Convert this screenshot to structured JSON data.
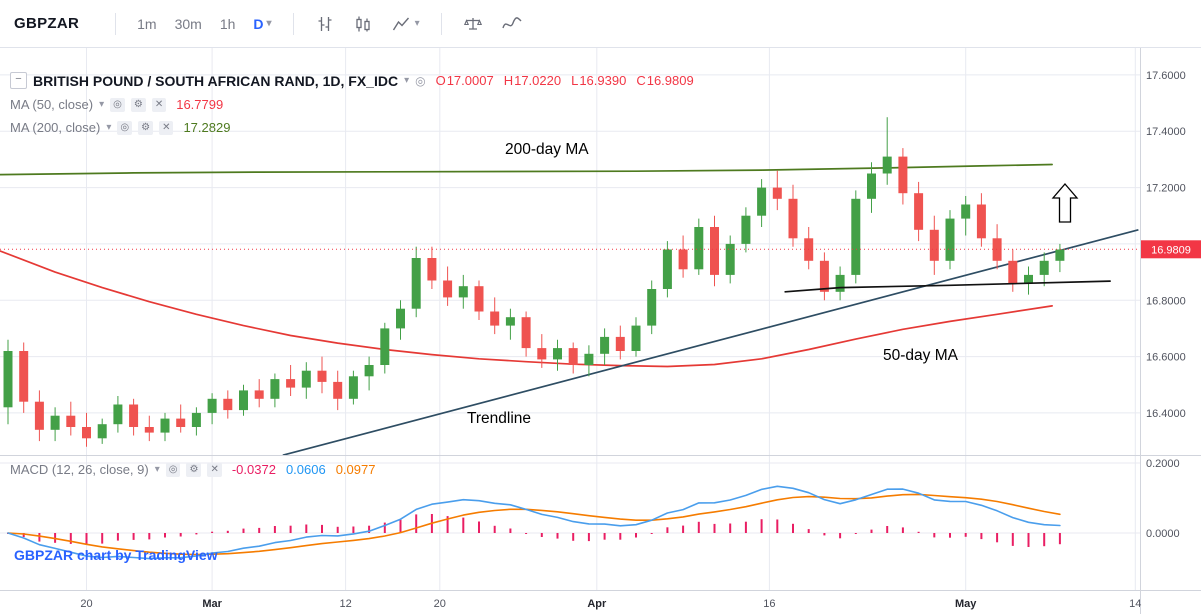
{
  "toolbar": {
    "symbol": "GBPZAR",
    "intervals": [
      {
        "label": "1m",
        "active": false
      },
      {
        "label": "30m",
        "active": false
      },
      {
        "label": "1h",
        "active": false
      },
      {
        "label": "D",
        "active": true
      }
    ]
  },
  "icons": {
    "chevron_down": "▾",
    "eye": "◎",
    "gear": "⚙",
    "close": "✕",
    "minus": "−"
  },
  "legend": {
    "title": "BRITISH POUND / SOUTH AFRICAN RAND, 1D, FX_IDC",
    "ohlc": {
      "o_label": "O",
      "o": "17.0007",
      "h_label": "H",
      "h": "17.0220",
      "l_label": "L",
      "l": "16.9390",
      "c_label": "C",
      "c": "16.9809"
    },
    "ma50": {
      "label": "MA (50, close)",
      "value": "16.7799"
    },
    "ma200": {
      "label": "MA (200, close)",
      "value": "17.2829"
    }
  },
  "macd_legend": {
    "label": "MACD (12, 26, close, 9)",
    "hist": "-0.0372",
    "macd": "0.0606",
    "signal": "0.0977"
  },
  "annotations": {
    "ma200": "200-day MA",
    "ma50": "50-day MA",
    "trendline": "Trendline"
  },
  "watermark": "GBPZAR chart by TradingView",
  "colors": {
    "accent_blue": "#2962ff",
    "up": "#43a047",
    "down": "#ef5350",
    "ma50": "#e53935",
    "ma200": "#4e7a1f",
    "price_line": "#f23645",
    "macd_hist": "#e91e63",
    "macd_line": "#4a9eec",
    "macd_signal": "#f57c00",
    "trendline": "#2e4d63",
    "support": "#111111",
    "grid": "#e8eaf1",
    "border": "#d1d4dc",
    "axis_text": "#50535e"
  },
  "chart_data": {
    "type": "candlestick",
    "symbol": "GBPZAR",
    "interval": "1D",
    "current_price": 16.9809,
    "price_axis": {
      "min": 16.24,
      "max": 17.66,
      "grid": [
        16.4,
        16.6,
        16.8,
        17.0,
        17.2,
        17.4,
        17.6
      ],
      "labels": [
        16.4,
        16.6,
        16.8,
        17.2,
        17.4,
        17.6
      ]
    },
    "macd_axis": {
      "labels": [
        0.2,
        0.0
      ]
    },
    "time_ticks": [
      {
        "label": "20",
        "i": 5
      },
      {
        "label": "Mar",
        "i": 13,
        "major": true
      },
      {
        "label": "12",
        "i": 21.5
      },
      {
        "label": "20",
        "i": 27.5
      },
      {
        "label": "Apr",
        "i": 37.5,
        "major": true
      },
      {
        "label": "16",
        "i": 48.5
      },
      {
        "label": "May",
        "i": 61,
        "major": true
      },
      {
        "label": "14",
        "i": 71.8
      }
    ],
    "candles": [
      [
        16.42,
        16.66,
        16.36,
        16.62
      ],
      [
        16.62,
        16.65,
        16.4,
        16.44
      ],
      [
        16.44,
        16.48,
        16.3,
        16.34
      ],
      [
        16.34,
        16.42,
        16.3,
        16.39
      ],
      [
        16.39,
        16.44,
        16.32,
        16.35
      ],
      [
        16.35,
        16.4,
        16.28,
        16.31
      ],
      [
        16.31,
        16.38,
        16.29,
        16.36
      ],
      [
        16.36,
        16.46,
        16.33,
        16.43
      ],
      [
        16.43,
        16.45,
        16.32,
        16.35
      ],
      [
        16.35,
        16.39,
        16.3,
        16.33
      ],
      [
        16.33,
        16.4,
        16.3,
        16.38
      ],
      [
        16.38,
        16.43,
        16.33,
        16.35
      ],
      [
        16.35,
        16.42,
        16.32,
        16.4
      ],
      [
        16.4,
        16.47,
        16.36,
        16.45
      ],
      [
        16.45,
        16.48,
        16.38,
        16.41
      ],
      [
        16.41,
        16.5,
        16.39,
        16.48
      ],
      [
        16.48,
        16.52,
        16.42,
        16.45
      ],
      [
        16.45,
        16.54,
        16.42,
        16.52
      ],
      [
        16.52,
        16.57,
        16.46,
        16.49
      ],
      [
        16.49,
        16.58,
        16.45,
        16.55
      ],
      [
        16.55,
        16.6,
        16.47,
        16.51
      ],
      [
        16.51,
        16.55,
        16.41,
        16.45
      ],
      [
        16.45,
        16.55,
        16.43,
        16.53
      ],
      [
        16.53,
        16.6,
        16.48,
        16.57
      ],
      [
        16.57,
        16.72,
        16.54,
        16.7
      ],
      [
        16.7,
        16.8,
        16.66,
        16.77
      ],
      [
        16.77,
        16.99,
        16.74,
        16.95
      ],
      [
        16.95,
        16.99,
        16.84,
        16.87
      ],
      [
        16.87,
        16.92,
        16.78,
        16.81
      ],
      [
        16.81,
        16.89,
        16.77,
        16.85
      ],
      [
        16.85,
        16.87,
        16.73,
        16.76
      ],
      [
        16.76,
        16.81,
        16.68,
        16.71
      ],
      [
        16.71,
        16.77,
        16.66,
        16.74
      ],
      [
        16.74,
        16.76,
        16.6,
        16.63
      ],
      [
        16.63,
        16.68,
        16.56,
        16.59
      ],
      [
        16.59,
        16.66,
        16.55,
        16.63
      ],
      [
        16.63,
        16.65,
        16.54,
        16.57
      ],
      [
        16.57,
        16.64,
        16.53,
        16.61
      ],
      [
        16.61,
        16.7,
        16.57,
        16.67
      ],
      [
        16.67,
        16.71,
        16.59,
        16.62
      ],
      [
        16.62,
        16.74,
        16.6,
        16.71
      ],
      [
        16.71,
        16.87,
        16.68,
        16.84
      ],
      [
        16.84,
        17.01,
        16.81,
        16.98
      ],
      [
        16.98,
        17.03,
        16.88,
        16.91
      ],
      [
        16.91,
        17.09,
        16.89,
        17.06
      ],
      [
        17.06,
        17.1,
        16.85,
        16.89
      ],
      [
        16.89,
        17.03,
        16.86,
        17.0
      ],
      [
        17.0,
        17.13,
        16.97,
        17.1
      ],
      [
        17.1,
        17.23,
        17.06,
        17.2
      ],
      [
        17.2,
        17.26,
        17.12,
        17.16
      ],
      [
        17.16,
        17.21,
        16.99,
        17.02
      ],
      [
        17.02,
        17.06,
        16.91,
        16.94
      ],
      [
        16.94,
        16.97,
        16.8,
        16.83
      ],
      [
        16.83,
        16.92,
        16.8,
        16.89
      ],
      [
        16.89,
        17.19,
        16.86,
        17.16
      ],
      [
        17.16,
        17.29,
        17.11,
        17.25
      ],
      [
        17.25,
        17.45,
        17.21,
        17.31
      ],
      [
        17.31,
        17.34,
        17.14,
        17.18
      ],
      [
        17.18,
        17.22,
        17.01,
        17.05
      ],
      [
        17.05,
        17.1,
        16.89,
        16.94
      ],
      [
        16.94,
        17.12,
        16.91,
        17.09
      ],
      [
        17.09,
        17.17,
        17.03,
        17.14
      ],
      [
        17.14,
        17.18,
        16.99,
        17.02
      ],
      [
        17.02,
        17.07,
        16.91,
        16.94
      ],
      [
        16.94,
        16.98,
        16.83,
        16.86
      ],
      [
        16.86,
        16.92,
        16.82,
        16.89
      ],
      [
        16.89,
        16.97,
        16.85,
        16.94
      ],
      [
        16.94,
        17.0,
        16.9,
        16.98
      ]
    ],
    "ma200_points": [
      [
        -0.5,
        17.246
      ],
      [
        8,
        17.252
      ],
      [
        16,
        17.255
      ],
      [
        24,
        17.256
      ],
      [
        32,
        17.257
      ],
      [
        40,
        17.258
      ],
      [
        48,
        17.262
      ],
      [
        56,
        17.27
      ],
      [
        62,
        17.277
      ],
      [
        66.5,
        17.282
      ]
    ],
    "ma50_points": [
      [
        -0.5,
        16.975
      ],
      [
        3,
        16.9
      ],
      [
        6,
        16.845
      ],
      [
        9,
        16.795
      ],
      [
        12,
        16.75
      ],
      [
        15,
        16.71
      ],
      [
        18,
        16.675
      ],
      [
        21,
        16.648
      ],
      [
        24,
        16.625
      ],
      [
        27,
        16.607
      ],
      [
        30,
        16.592
      ],
      [
        33,
        16.582
      ],
      [
        36,
        16.573
      ],
      [
        39,
        16.568
      ],
      [
        42,
        16.565
      ],
      [
        45,
        16.572
      ],
      [
        48,
        16.592
      ],
      [
        51,
        16.625
      ],
      [
        54,
        16.662
      ],
      [
        57,
        16.697
      ],
      [
        60,
        16.725
      ],
      [
        63,
        16.75
      ],
      [
        66.5,
        16.78
      ]
    ],
    "trendline": {
      "from": [
        17.5,
        16.25
      ],
      "to": [
        72,
        17.05
      ]
    },
    "support_line": [
      [
        49.5,
        16.83
      ],
      [
        53,
        16.845
      ],
      [
        60,
        16.853
      ],
      [
        70.2,
        16.868
      ]
    ]
  }
}
